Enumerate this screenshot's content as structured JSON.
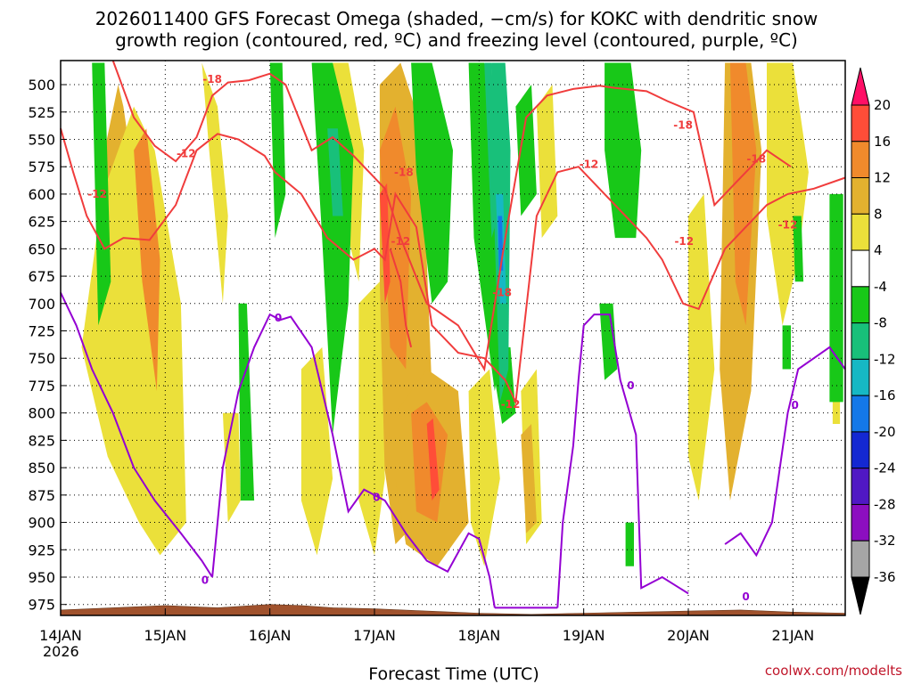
{
  "chart_data": {
    "type": "heatmap",
    "title_lines": [
      "2026011400 GFS Forecast Omega (shaded, −cm/s) for KOKC with dendritic snow",
      "growth region (contoured, red, ºC) and freezing level (contoured, purple, ºC)"
    ],
    "xlabel": "Forecast Time (UTC)",
    "credit": "coolwx.com/modelts",
    "year_label": "2026",
    "x_ticks": [
      "14JAN",
      "15JAN",
      "16JAN",
      "17JAN",
      "18JAN",
      "19JAN",
      "20JAN",
      "21JAN"
    ],
    "xlim_days": [
      0,
      7.5
    ],
    "y_ticks": [
      500,
      525,
      550,
      575,
      600,
      625,
      650,
      675,
      700,
      725,
      750,
      775,
      800,
      825,
      850,
      875,
      900,
      925,
      950,
      975
    ],
    "ylim_hpa": [
      985,
      478
    ],
    "y_axis_inverted": true,
    "grid": "dotted",
    "colorbar": {
      "levels": [
        20,
        16,
        12,
        8,
        4,
        -4,
        -8,
        -12,
        -16,
        -20,
        -24,
        -28,
        -32,
        -36
      ],
      "colors": [
        "#ff0f66",
        "#ff4d38",
        "#f08a2c",
        "#e3b12f",
        "#ebe03a",
        "#ffffff",
        "#18c818",
        "#18c07a",
        "#16b8c4",
        "#1478e8",
        "#1428d2",
        "#5018c4",
        "#8c0ec0",
        "#a6a6a6",
        "#000000"
      ],
      "over_color": "#ff0f66",
      "under_color": "#000000"
    },
    "shading_colors": {
      "dry_yellow": "#ebe03a",
      "gold": "#e3b12f",
      "orange": "#f08a2c",
      "red": "#ff4d38",
      "green": "#18c818",
      "teal": "#18c07a",
      "cyan": "#16b8c4",
      "blue": "#1478e8"
    },
    "omega_regions": [
      {
        "level": "gold",
        "x": [
          0.42,
          0.55,
          0.6,
          0.72,
          0.9,
          1.0,
          1.05,
          0.9,
          0.6,
          0.42
        ],
        "p": [
          560,
          500,
          520,
          600,
          650,
          760,
          880,
          900,
          800,
          560
        ]
      },
      {
        "level": "yellow",
        "x": [
          0.2,
          0.4,
          0.7,
          0.9,
          1.15,
          1.2,
          0.95,
          0.75,
          0.45,
          0.2
        ],
        "p": [
          740,
          600,
          520,
          560,
          700,
          900,
          930,
          900,
          840,
          740
        ]
      },
      {
        "level": "orange",
        "x": [
          0.7,
          0.82,
          0.95,
          0.92,
          0.78
        ],
        "p": [
          560,
          540,
          660,
          780,
          680
        ]
      },
      {
        "level": "yellow",
        "x": [
          1.35,
          1.5,
          1.6,
          1.55,
          1.42
        ],
        "p": [
          480,
          520,
          620,
          700,
          560
        ]
      },
      {
        "level": "yellow",
        "x": [
          1.55,
          1.7,
          1.72,
          1.6
        ],
        "p": [
          800,
          800,
          880,
          900
        ]
      },
      {
        "level": "yellow",
        "x": [
          2.3,
          2.5,
          2.6,
          2.45,
          2.3
        ],
        "p": [
          760,
          740,
          860,
          930,
          880
        ]
      },
      {
        "level": "yellow",
        "x": [
          2.6,
          2.75,
          2.9,
          2.85,
          2.7,
          2.6
        ],
        "p": [
          480,
          480,
          560,
          680,
          620,
          540
        ]
      },
      {
        "level": "gold",
        "x": [
          3.05,
          3.25,
          3.45,
          3.55,
          3.4,
          3.2,
          3.05
        ],
        "p": [
          500,
          480,
          540,
          780,
          900,
          920,
          820
        ]
      },
      {
        "level": "orange",
        "x": [
          3.05,
          3.2,
          3.35,
          3.3,
          3.15
        ],
        "p": [
          560,
          520,
          600,
          760,
          740
        ]
      },
      {
        "level": "red",
        "x": [
          3.05,
          3.12,
          3.15,
          3.1
        ],
        "p": [
          600,
          590,
          680,
          700
        ]
      },
      {
        "level": "yellow",
        "x": [
          2.85,
          3.05,
          3.1,
          3.0,
          2.85
        ],
        "p": [
          700,
          680,
          860,
          930,
          880
        ]
      },
      {
        "level": "gold",
        "x": [
          3.2,
          3.5,
          3.8,
          3.9,
          3.6,
          3.3,
          3.2
        ],
        "p": [
          800,
          760,
          780,
          900,
          940,
          920,
          860
        ]
      },
      {
        "level": "orange",
        "x": [
          3.35,
          3.5,
          3.7,
          3.6,
          3.4
        ],
        "p": [
          800,
          790,
          820,
          900,
          890
        ]
      },
      {
        "level": "red",
        "x": [
          3.5,
          3.56,
          3.62,
          3.55
        ],
        "p": [
          810,
          805,
          870,
          880
        ]
      },
      {
        "level": "yellow",
        "x": [
          3.9,
          4.1,
          4.2,
          4.05,
          3.92
        ],
        "p": [
          780,
          760,
          860,
          940,
          900
        ]
      },
      {
        "level": "yellow",
        "x": [
          4.4,
          4.55,
          4.6,
          4.45
        ],
        "p": [
          780,
          760,
          900,
          920
        ]
      },
      {
        "level": "gold",
        "x": [
          4.4,
          4.5,
          4.55,
          4.45
        ],
        "p": [
          820,
          810,
          900,
          910
        ]
      },
      {
        "level": "yellow",
        "x": [
          4.55,
          4.7,
          4.75,
          4.6
        ],
        "p": [
          520,
          500,
          620,
          640
        ]
      },
      {
        "level": "yellow",
        "x": [
          6.0,
          6.15,
          6.25,
          6.1,
          6.0
        ],
        "p": [
          620,
          600,
          760,
          880,
          840
        ]
      },
      {
        "level": "gold",
        "x": [
          6.35,
          6.6,
          6.7,
          6.6,
          6.4,
          6.3
        ],
        "p": [
          480,
          480,
          560,
          780,
          880,
          760
        ]
      },
      {
        "level": "orange",
        "x": [
          6.4,
          6.55,
          6.65,
          6.55,
          6.45
        ],
        "p": [
          480,
          480,
          560,
          720,
          680
        ]
      },
      {
        "level": "yellow",
        "x": [
          6.75,
          7.0,
          7.15,
          7.05,
          6.9,
          6.75
        ],
        "p": [
          480,
          480,
          580,
          660,
          720,
          620
        ]
      },
      {
        "level": "yellow",
        "x": [
          7.38,
          7.45,
          7.45,
          7.38
        ],
        "p": [
          770,
          770,
          810,
          810
        ]
      },
      {
        "level": "green",
        "x": [
          0.3,
          0.42,
          0.48,
          0.36
        ],
        "p": [
          480,
          480,
          680,
          720
        ]
      },
      {
        "level": "green",
        "x": [
          2.0,
          2.12,
          2.15,
          2.05
        ],
        "p": [
          480,
          480,
          600,
          640
        ]
      },
      {
        "level": "green",
        "x": [
          1.7,
          1.78,
          1.85,
          1.72
        ],
        "p": [
          700,
          700,
          880,
          880
        ]
      },
      {
        "level": "green",
        "x": [
          2.4,
          2.6,
          2.8,
          2.75,
          2.6,
          2.5
        ],
        "p": [
          480,
          480,
          560,
          700,
          820,
          640
        ]
      },
      {
        "level": "green",
        "x": [
          3.35,
          3.55,
          3.75,
          3.7,
          3.55,
          3.4
        ],
        "p": [
          480,
          480,
          560,
          680,
          700,
          580
        ]
      },
      {
        "level": "teal",
        "x": [
          2.55,
          2.65,
          2.7,
          2.6
        ],
        "p": [
          540,
          540,
          620,
          620
        ]
      },
      {
        "level": "green",
        "x": [
          3.9,
          4.05,
          4.2,
          4.28,
          4.15,
          3.95
        ],
        "p": [
          480,
          480,
          560,
          700,
          780,
          640
        ]
      },
      {
        "level": "teal",
        "x": [
          4.05,
          4.12,
          4.18,
          4.12
        ],
        "p": [
          480,
          480,
          620,
          640
        ]
      },
      {
        "level": "green",
        "x": [
          4.1,
          4.3,
          4.35,
          4.22
        ],
        "p": [
          740,
          740,
          800,
          810
        ]
      },
      {
        "level": "teal",
        "x": [
          4.12,
          4.25,
          4.3,
          4.28,
          4.2,
          4.15
        ],
        "p": [
          480,
          480,
          560,
          760,
          790,
          640
        ]
      },
      {
        "level": "cyan",
        "x": [
          4.16,
          4.23,
          4.26,
          4.2
        ],
        "p": [
          600,
          600,
          700,
          700
        ]
      },
      {
        "level": "blue",
        "x": [
          4.18,
          4.22,
          4.23,
          4.19
        ],
        "p": [
          620,
          620,
          670,
          670
        ]
      },
      {
        "level": "green",
        "x": [
          4.35,
          4.5,
          4.55,
          4.4
        ],
        "p": [
          520,
          500,
          600,
          620
        ]
      },
      {
        "level": "green",
        "x": [
          5.2,
          5.45,
          5.55,
          5.5,
          5.3,
          5.2
        ],
        "p": [
          480,
          480,
          560,
          640,
          640,
          560
        ]
      },
      {
        "level": "green",
        "x": [
          5.15,
          5.28,
          5.32,
          5.2
        ],
        "p": [
          700,
          700,
          760,
          770
        ]
      },
      {
        "level": "green",
        "x": [
          7.0,
          7.08,
          7.1,
          7.02
        ],
        "p": [
          620,
          620,
          680,
          680
        ]
      },
      {
        "level": "green",
        "x": [
          7.35,
          7.48,
          7.48,
          7.35
        ],
        "p": [
          600,
          600,
          790,
          790
        ]
      },
      {
        "level": "green",
        "x": [
          5.4,
          5.48,
          5.48,
          5.4
        ],
        "p": [
          900,
          900,
          940,
          940
        ]
      },
      {
        "level": "green",
        "x": [
          6.9,
          6.98,
          6.98,
          6.9
        ],
        "p": [
          720,
          720,
          760,
          760
        ]
      }
    ],
    "dgz_contours": [
      {
        "level": -18,
        "x": [
          0.5,
          0.7,
          0.9,
          1.1,
          1.3,
          1.45,
          1.6,
          1.8,
          2.0,
          2.15,
          2.4,
          2.6,
          2.8,
          2.95,
          3.1,
          3.25,
          3.5,
          3.8,
          4.05,
          4.25,
          4.45,
          4.65,
          4.9,
          5.15,
          5.3,
          5.6,
          5.8,
          6.05,
          6.25,
          6.45,
          6.75,
          6.98
        ],
        "p": [
          478,
          530,
          556,
          570,
          548,
          510,
          498,
          496,
          490,
          500,
          560,
          548,
          565,
          580,
          595,
          640,
          700,
          720,
          760,
          640,
          530,
          510,
          504,
          501,
          503,
          506,
          515,
          525,
          610,
          590,
          560,
          575
        ]
      },
      {
        "level": -12,
        "x": [
          0.0,
          0.12,
          0.25,
          0.42,
          0.6,
          0.85,
          1.1,
          1.3,
          1.5,
          1.7,
          1.95,
          2.05,
          2.3,
          2.55,
          2.8,
          3.0,
          3.1,
          3.2,
          3.4,
          3.55,
          3.8,
          4.05,
          4.25,
          4.35,
          4.55,
          4.75,
          4.95,
          5.2,
          5.4,
          5.6,
          5.75,
          5.95,
          6.1,
          6.35,
          6.55,
          6.75,
          6.95,
          7.2,
          7.5
        ],
        "p": [
          540,
          580,
          620,
          650,
          640,
          642,
          610,
          560,
          545,
          550,
          565,
          580,
          600,
          640,
          660,
          650,
          660,
          600,
          630,
          720,
          745,
          750,
          770,
          790,
          620,
          580,
          575,
          600,
          620,
          640,
          660,
          700,
          705,
          650,
          630,
          610,
          600,
          595,
          585
        ]
      },
      {
        "level": -12,
        "x": [
          3.15,
          3.25,
          3.3,
          3.35
        ],
        "p": [
          650,
          680,
          720,
          740
        ]
      }
    ],
    "dgz_labels": [
      {
        "text": "-18",
        "x": 1.45,
        "p": 495
      },
      {
        "text": "-12",
        "x": 0.35,
        "p": 600
      },
      {
        "text": "-12",
        "x": 1.2,
        "p": 563
      },
      {
        "text": "-18",
        "x": 3.28,
        "p": 580
      },
      {
        "text": "-12",
        "x": 3.25,
        "p": 643
      },
      {
        "text": "-18",
        "x": 4.22,
        "p": 690
      },
      {
        "text": "-12",
        "x": 4.3,
        "p": 792
      },
      {
        "text": "-12",
        "x": 5.05,
        "p": 573
      },
      {
        "text": "-18",
        "x": 5.95,
        "p": 537
      },
      {
        "text": "-12",
        "x": 5.96,
        "p": 643
      },
      {
        "text": "-18",
        "x": 6.65,
        "p": 568
      },
      {
        "text": "-12",
        "x": 6.95,
        "p": 628
      }
    ],
    "freezing_contours": [
      {
        "x": [
          0.0,
          0.15,
          0.3,
          0.5,
          0.7,
          0.9,
          1.15,
          1.35,
          1.45
        ],
        "p": [
          690,
          720,
          760,
          800,
          850,
          880,
          910,
          935,
          950
        ]
      },
      {
        "x": [
          1.45,
          1.55,
          1.7,
          1.85,
          2.0,
          2.1,
          2.2,
          2.4,
          2.6,
          2.75,
          2.9,
          3.1,
          3.3,
          3.5,
          3.7,
          3.9,
          4.0,
          4.1,
          4.15
        ],
        "p": [
          950,
          850,
          780,
          740,
          710,
          715,
          712,
          740,
          820,
          890,
          870,
          880,
          910,
          935,
          945,
          910,
          915,
          950,
          978
        ]
      },
      {
        "x": [
          4.15,
          4.5,
          4.75
        ],
        "p": [
          978,
          978,
          978
        ]
      },
      {
        "x": [
          4.75,
          4.8,
          4.9,
          4.95,
          5.0,
          5.1,
          5.25,
          5.35,
          5.5,
          5.55,
          5.75,
          6.0
        ],
        "p": [
          978,
          900,
          830,
          770,
          720,
          710,
          710,
          770,
          820,
          960,
          950,
          965
        ]
      },
      {
        "x": [
          6.35,
          6.5,
          6.65,
          6.8,
          6.95,
          7.05,
          7.2,
          7.35,
          7.5
        ],
        "p": [
          920,
          910,
          930,
          900,
          800,
          760,
          750,
          740,
          760
        ]
      }
    ],
    "freezing_labels": [
      {
        "text": "0",
        "x": 1.38,
        "p": 953
      },
      {
        "text": "0",
        "x": 2.08,
        "p": 713
      },
      {
        "text": "0",
        "x": 3.02,
        "p": 877
      },
      {
        "text": "0",
        "x": 5.45,
        "p": 775
      },
      {
        "text": "0",
        "x": 6.55,
        "p": 968
      },
      {
        "text": "0",
        "x": 7.02,
        "p": 793
      }
    ],
    "terrain": {
      "p": [
        980,
        978,
        976,
        978,
        975,
        976,
        978,
        979,
        981,
        983,
        984,
        983,
        982,
        981,
        980,
        982,
        983
      ],
      "x": [
        0,
        0.5,
        1.0,
        1.5,
        2.0,
        2.3,
        2.6,
        3.0,
        3.5,
        4.0,
        4.5,
        5.0,
        5.5,
        6.0,
        6.5,
        7.0,
        7.5
      ],
      "color": "#a0522d"
    },
    "dgz_color": "#f03c3c",
    "freezing_color": "#9400d3"
  }
}
